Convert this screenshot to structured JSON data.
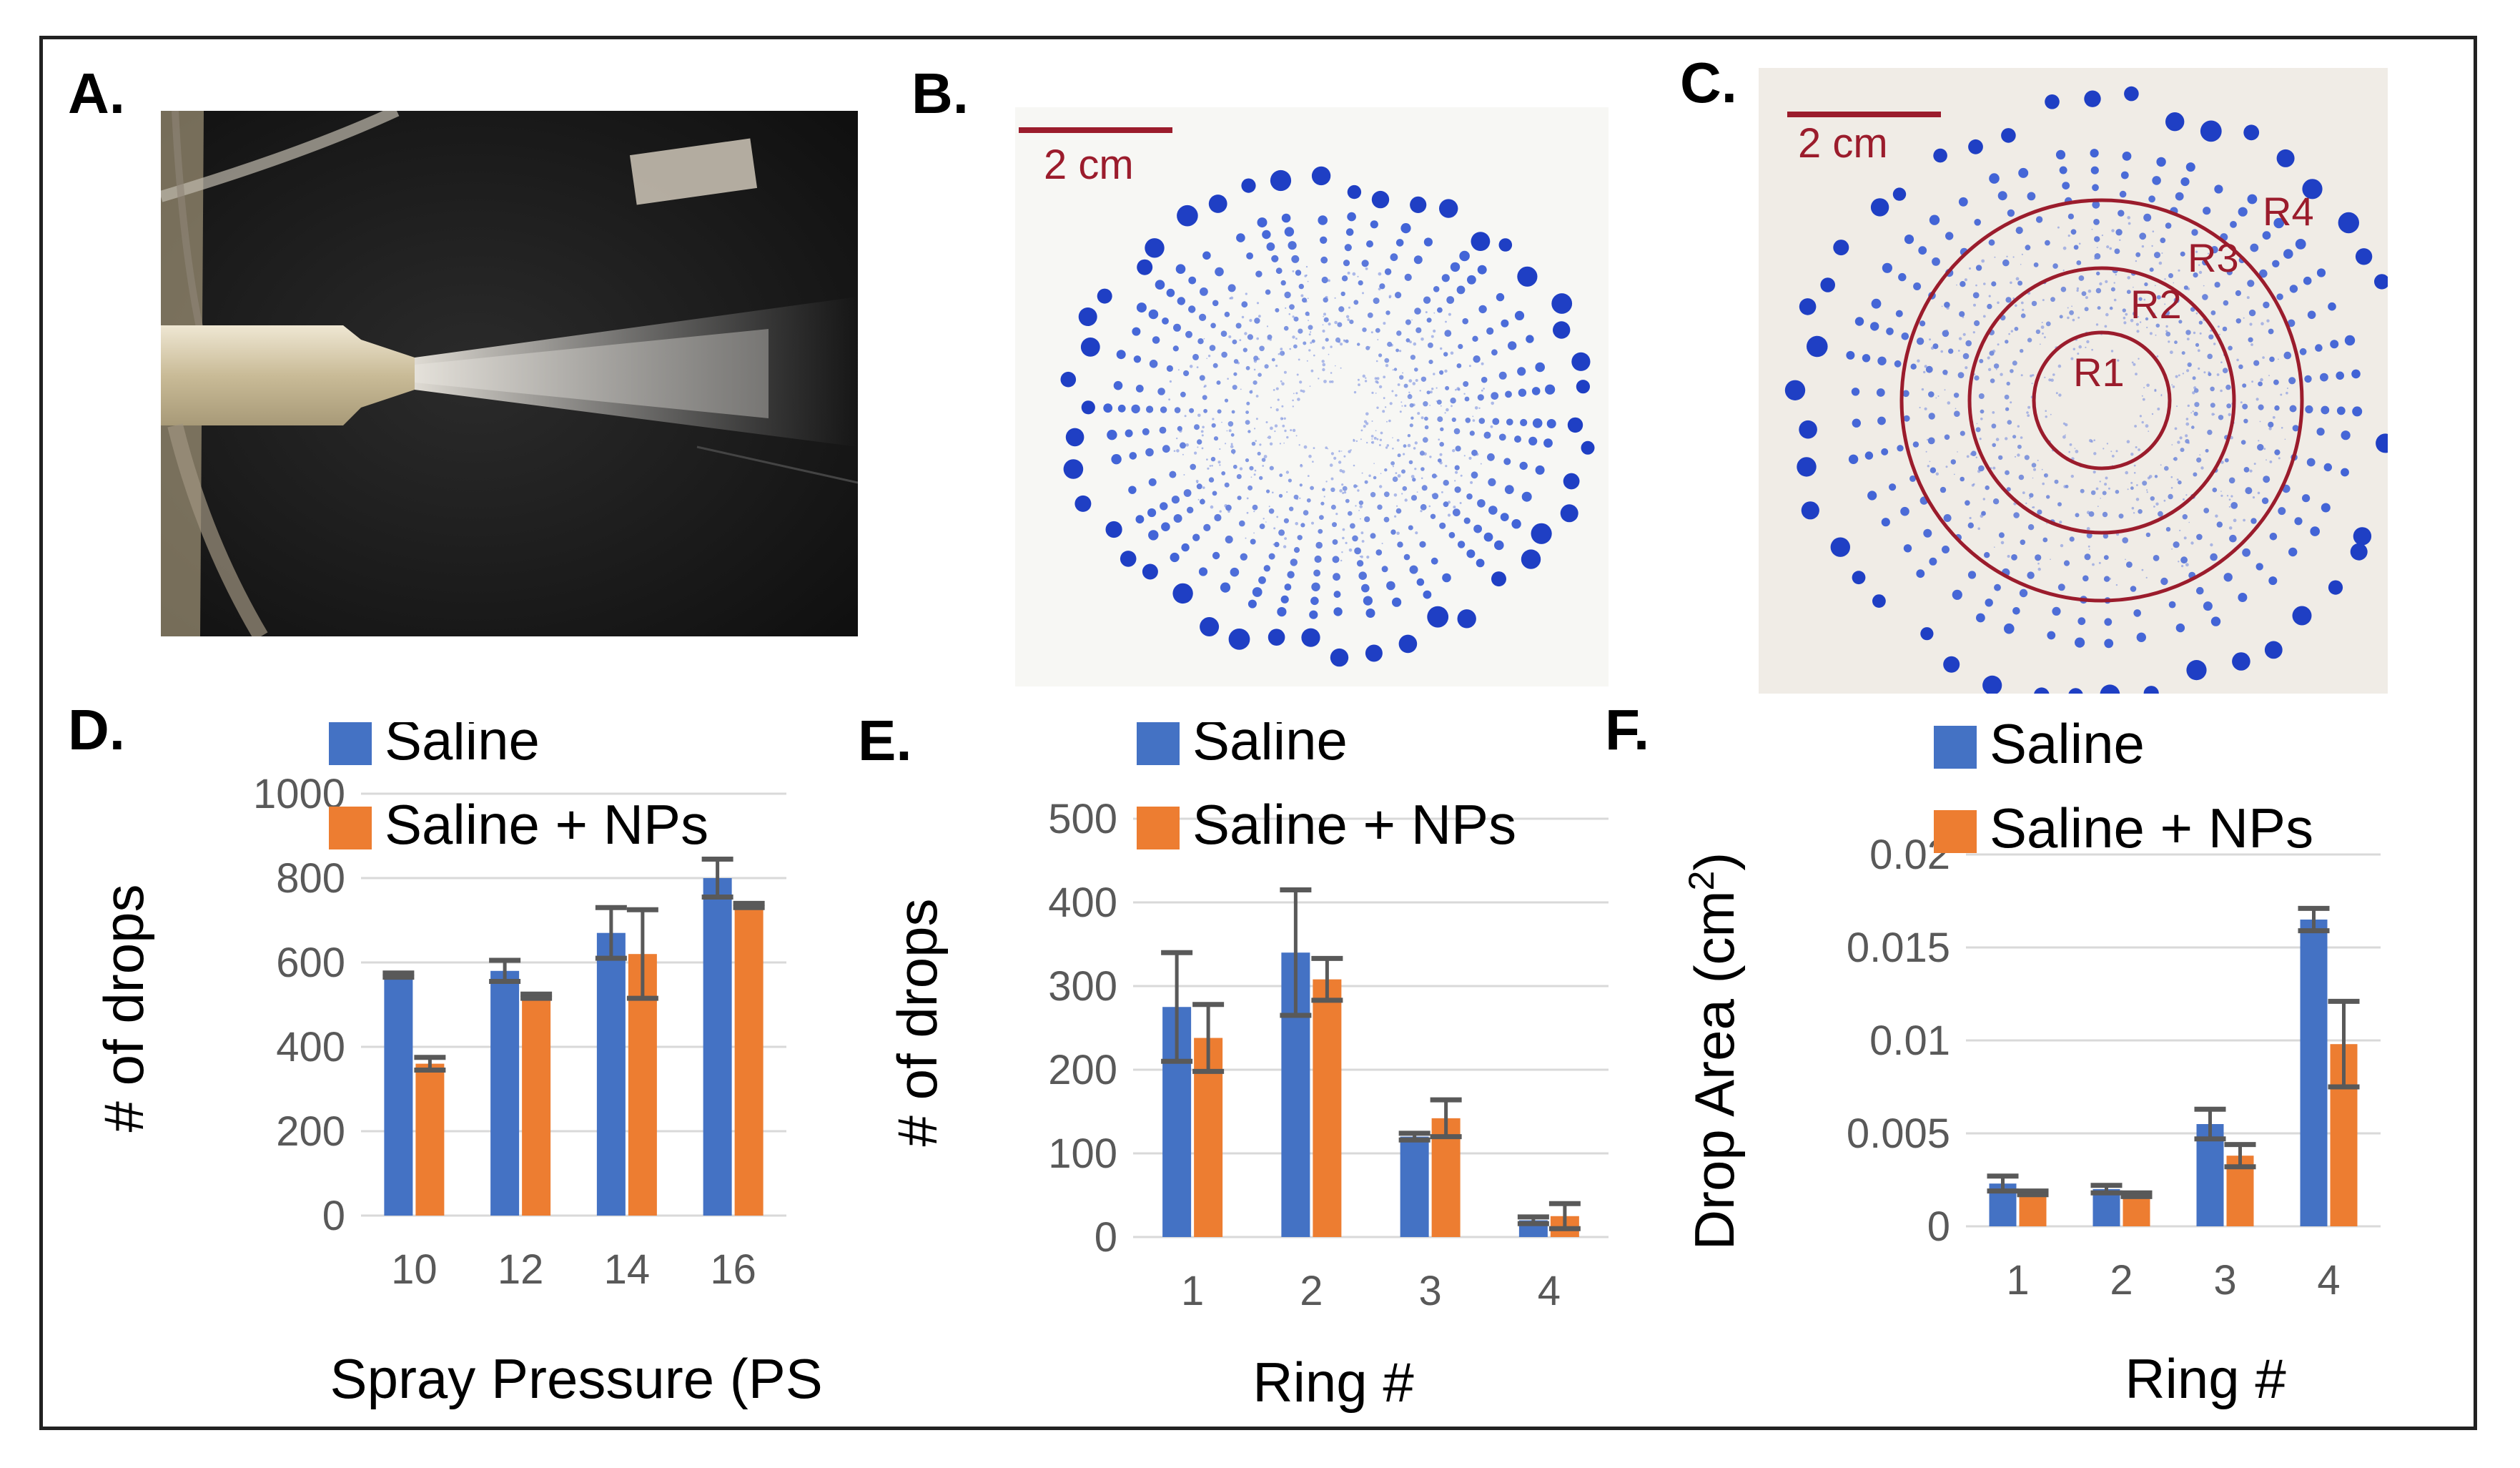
{
  "figure": {
    "panels": {
      "A": {
        "label": "A."
      },
      "B": {
        "label": "B.",
        "scale_bar": "2 cm"
      },
      "C": {
        "label": "C.",
        "scale_bar": "2 cm",
        "ring_labels": [
          "R1",
          "R2",
          "R3",
          "R4"
        ]
      },
      "D": {
        "label": "D."
      },
      "E": {
        "label": "E."
      },
      "F": {
        "label": "F."
      }
    },
    "colors": {
      "saline": "#4472c4",
      "saline_nps": "#ed7d31",
      "error_bar": "#595959",
      "scale_bar": "#9b1c2c"
    }
  },
  "chart_data": [
    {
      "type": "bar",
      "panel": "D",
      "categories": [
        "10",
        "12",
        "14",
        "16"
      ],
      "series": [
        {
          "name": "Saline",
          "values": [
            570,
            580,
            670,
            800
          ],
          "errors": [
            5,
            25,
            60,
            45
          ]
        },
        {
          "name": "Saline + NPs",
          "values": [
            360,
            520,
            620,
            735
          ],
          "errors": [
            15,
            5,
            105,
            5
          ]
        }
      ],
      "xlabel": "Spray Pressure (PSI)",
      "ylabel": "# of drops",
      "ylim": [
        0,
        1000
      ],
      "yticks": [
        "0",
        "200",
        "400",
        "600",
        "800",
        "1000"
      ],
      "legend": "top"
    },
    {
      "type": "bar",
      "panel": "E",
      "categories": [
        "1",
        "2",
        "3",
        "4"
      ],
      "series": [
        {
          "name": "Saline",
          "values": [
            275,
            340,
            120,
            20
          ],
          "errors": [
            65,
            75,
            4,
            4
          ]
        },
        {
          "name": "Saline + NPs",
          "values": [
            238,
            308,
            142,
            25
          ],
          "errors": [
            40,
            25,
            22,
            15
          ]
        }
      ],
      "xlabel": "Ring #",
      "ylabel": "# of drops",
      "ylim": [
        0,
        500
      ],
      "yticks": [
        "0",
        "100",
        "200",
        "300",
        "400",
        "500"
      ],
      "legend": "top"
    },
    {
      "type": "bar",
      "panel": "F",
      "categories": [
        "1",
        "2",
        "3",
        "4"
      ],
      "series": [
        {
          "name": "Saline",
          "values": [
            0.0023,
            0.002,
            0.0055,
            0.0165
          ],
          "errors": [
            0.0004,
            0.0002,
            0.0008,
            0.0006
          ]
        },
        {
          "name": "Saline + NPs",
          "values": [
            0.0018,
            0.0017,
            0.0038,
            0.0098
          ],
          "errors": [
            0.0001,
            0.0001,
            0.0006,
            0.0023
          ]
        }
      ],
      "xlabel": "Ring #",
      "ylabel": "Drop Area (cm",
      "ylabel_sup": "2",
      "ylabel_tail": ")",
      "ylim": [
        0,
        0.02
      ],
      "yticks": [
        "0",
        "0.005",
        "0.01",
        "0.015",
        "0.02"
      ],
      "legend": "top"
    }
  ]
}
